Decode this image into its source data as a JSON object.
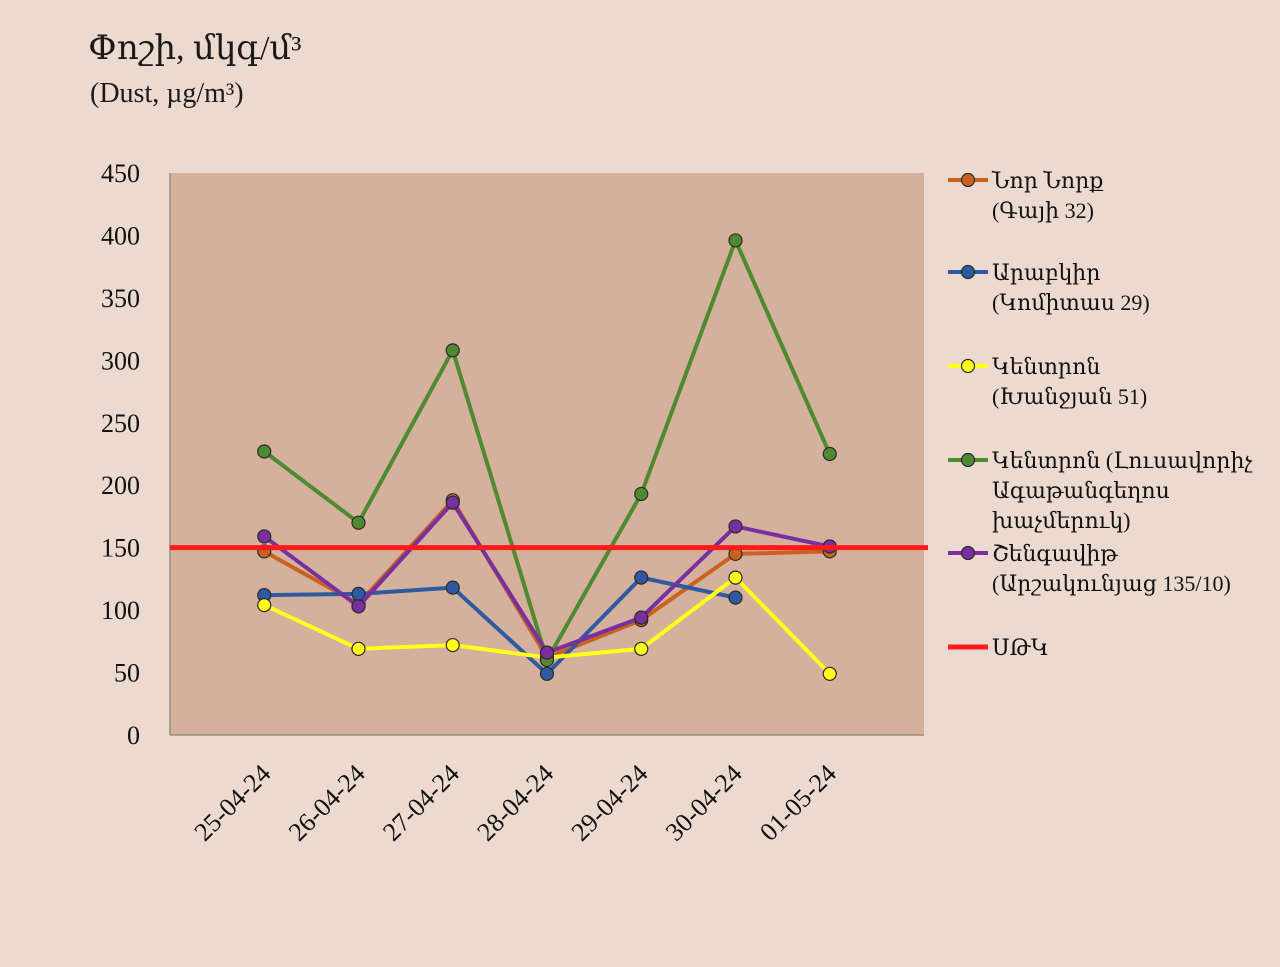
{
  "title": "Փոշի, մկգ/մ³",
  "subtitle": "(Dust, µg/m³)",
  "chart_data": {
    "type": "line",
    "categories": [
      "25-04-24",
      "26-04-24",
      "27-04-24",
      "28-04-24",
      "29-04-24",
      "30-04-24",
      "01-05-24"
    ],
    "ylim": [
      0,
      450
    ],
    "yticks": [
      0,
      50,
      100,
      150,
      200,
      250,
      300,
      350,
      400,
      450
    ],
    "grid": false,
    "legend_position": "right",
    "plot_background": "#d4b09d",
    "series": [
      {
        "name_lines": [
          "Նոր Նորք",
          "(Գայի 32)"
        ],
        "color": "#c8621e",
        "values": [
          147,
          105,
          188,
          62,
          92,
          145,
          147
        ]
      },
      {
        "name_lines": [
          "Արաբկիր",
          "(Կոմիտաս 29)"
        ],
        "color": "#2f5aa0",
        "values": [
          112,
          113,
          118,
          49,
          126,
          110,
          null
        ]
      },
      {
        "name_lines": [
          "Կենտրոն",
          "(Խանջյան 51)"
        ],
        "color": "#ffff1a",
        "values": [
          104,
          69,
          72,
          62,
          69,
          126,
          49
        ]
      },
      {
        "name_lines": [
          "Կենտրոն (Լուսավորիչ",
          "Ագաթանգեղոս",
          "խաչմերուկ)"
        ],
        "color": "#4e8a32",
        "values": [
          227,
          170,
          308,
          60,
          193,
          396,
          225
        ]
      },
      {
        "name_lines": [
          "Շենգավիթ",
          "(Արշակունյաց 135/10)"
        ],
        "color": "#7a2fa0",
        "values": [
          159,
          103,
          186,
          66,
          94,
          167,
          151
        ]
      }
    ],
    "reference_line": {
      "name": "ՍԹԿ",
      "value": 150,
      "color": "#ff1a1a"
    }
  }
}
